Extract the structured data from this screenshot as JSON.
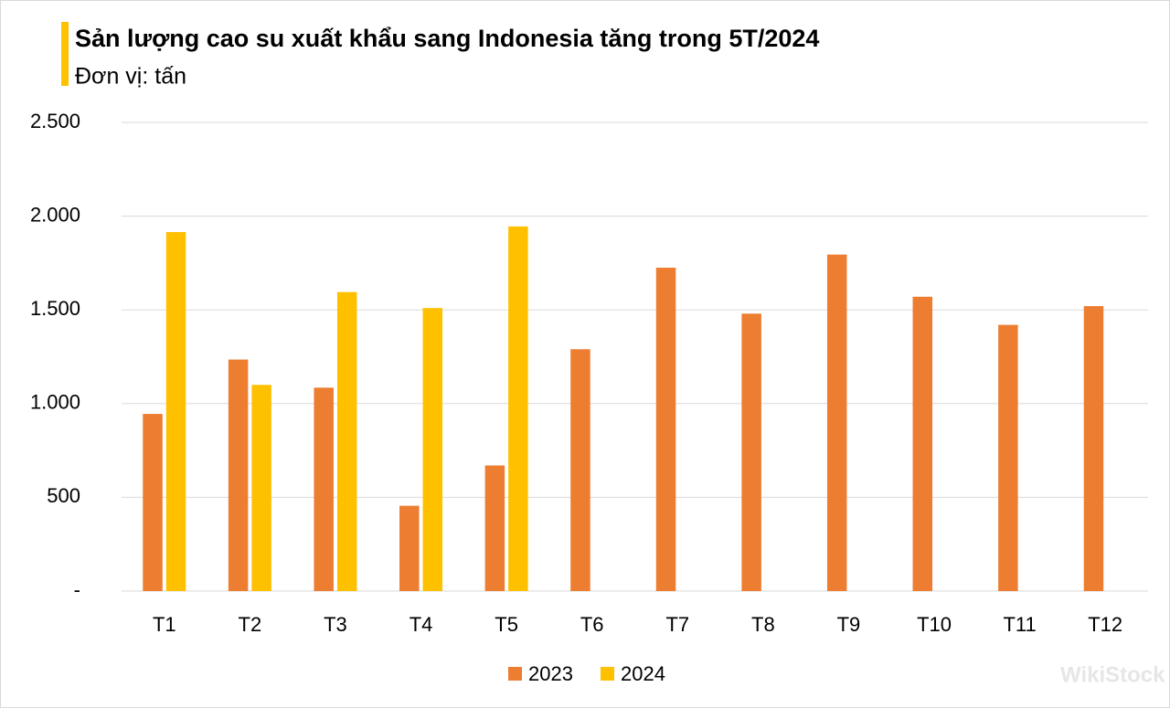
{
  "chart_data": {
    "type": "bar",
    "title": "Sản lượng cao su xuất khẩu sang Indonesia tăng trong 5T/2024",
    "subtitle": "Đơn vị: tấn",
    "categories": [
      "T1",
      "T2",
      "T3",
      "T4",
      "T5",
      "T6",
      "T7",
      "T8",
      "T9",
      "T10",
      "T11",
      "T12"
    ],
    "series": [
      {
        "name": "2023",
        "color": "#ed7d31",
        "values": [
          945,
          1235,
          1085,
          455,
          670,
          1290,
          1725,
          1480,
          1795,
          1570,
          1420,
          1520
        ]
      },
      {
        "name": "2024",
        "color": "#ffc000",
        "values": [
          1915,
          1100,
          1595,
          1510,
          1945,
          null,
          null,
          null,
          null,
          null,
          null,
          null
        ]
      }
    ],
    "ylim": [
      0,
      2500
    ],
    "yticks": [
      {
        "value": 0,
        "label": "-"
      },
      500,
      {
        "value": 1000,
        "label": "1.000"
      },
      {
        "value": 1500,
        "label": "1.500"
      },
      {
        "value": 2000,
        "label": "2.000"
      },
      {
        "value": 2500,
        "label": "2.500"
      }
    ],
    "grid": true,
    "legend": "bottom"
  },
  "watermark": "WikiStock"
}
